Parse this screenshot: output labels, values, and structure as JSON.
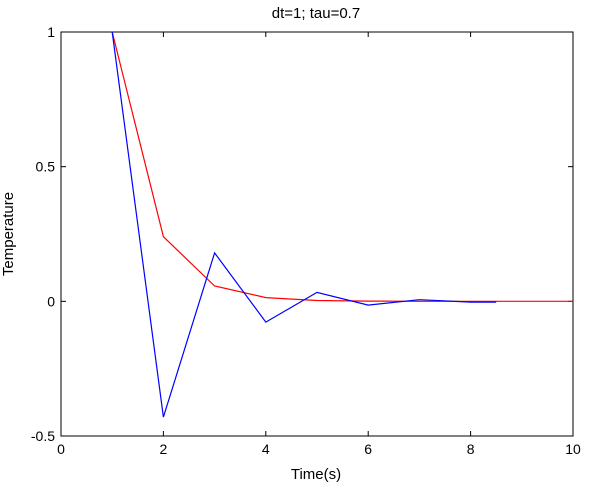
{
  "chart_data": {
    "type": "line",
    "title": "dt=1; tau=0.7",
    "xlabel": "Time(s)",
    "ylabel": "Temperature",
    "xlim": [
      0,
      10
    ],
    "ylim": [
      -0.5,
      1
    ],
    "xticks": [
      0,
      2,
      4,
      6,
      8,
      10
    ],
    "yticks": [
      -0.5,
      0,
      0.5,
      1
    ],
    "xtick_labels": [
      "0",
      "2",
      "4",
      "6",
      "8",
      "10"
    ],
    "ytick_labels": [
      "-0.5",
      "0",
      "0.5",
      "1"
    ],
    "grid": false,
    "legend": "none",
    "series": [
      {
        "color": "#ff0000",
        "x": [
          1,
          2,
          3,
          4,
          5,
          6,
          7,
          8,
          9,
          10
        ],
        "y": [
          1,
          0.24,
          0.057,
          0.014,
          0.003,
          0.001,
          0.0002,
          0.0,
          0.0,
          0.0
        ]
      },
      {
        "color": "#0000ff",
        "x": [
          1,
          2,
          3,
          4,
          5,
          6,
          7,
          8,
          8.5
        ],
        "y": [
          1,
          -0.43,
          0.18,
          -0.077,
          0.033,
          -0.014,
          0.006,
          -0.003,
          -0.003
        ]
      }
    ]
  }
}
